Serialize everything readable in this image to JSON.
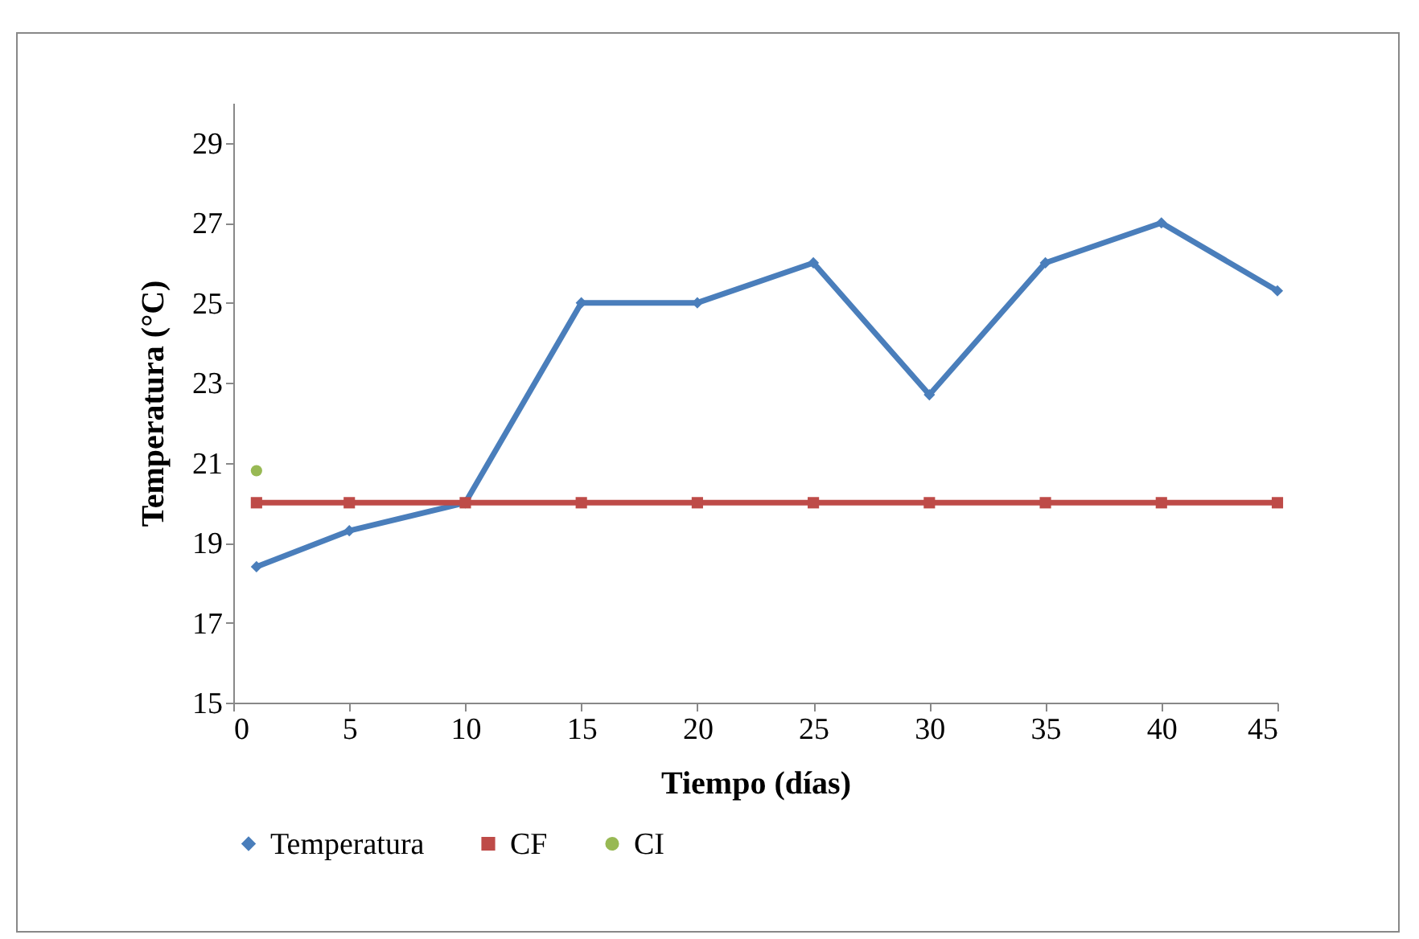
{
  "chart_data": {
    "type": "line",
    "xlabel": "Tiempo (días)",
    "ylabel": "Temperatura (°C)",
    "xlim": [
      0,
      45
    ],
    "xticks": [
      0,
      5,
      10,
      15,
      20,
      25,
      30,
      35,
      40,
      45
    ],
    "ylim": [
      15,
      30
    ],
    "yticks": [
      15,
      17,
      19,
      21,
      23,
      25,
      27,
      29
    ],
    "grid": false,
    "legend": "bottom",
    "series": [
      {
        "name": "Temperatura",
        "type": "line",
        "color": "#4a7ebb",
        "marker": "diamond",
        "x": [
          1,
          5,
          10,
          15,
          20,
          25,
          30,
          35,
          40,
          45
        ],
        "values": [
          18.4,
          19.3,
          20,
          25,
          25,
          26,
          22.7,
          26,
          27,
          25.3
        ]
      },
      {
        "name": "CF",
        "type": "line",
        "color": "#be4b48",
        "marker": "square",
        "x": [
          1,
          5,
          10,
          15,
          20,
          25,
          30,
          35,
          40,
          45
        ],
        "values": [
          20,
          20,
          20,
          20,
          20,
          20,
          20,
          20,
          20,
          20
        ]
      },
      {
        "name": "CI",
        "type": "scatter",
        "color": "#98b954",
        "marker": "circle",
        "x": [
          1
        ],
        "values": [
          20.8
        ]
      }
    ]
  }
}
